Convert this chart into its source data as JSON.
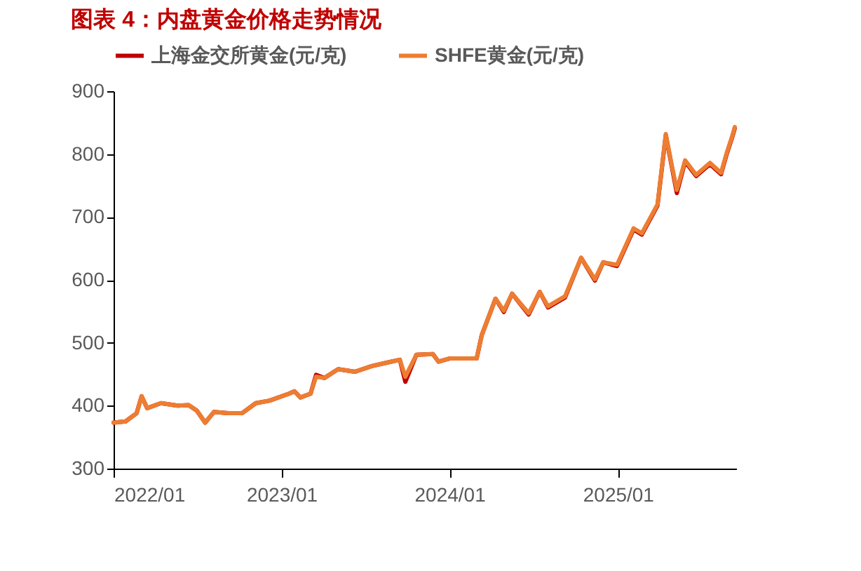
{
  "chart_data": {
    "type": "line",
    "title": "图表 4：内盘黄金价格走势情况",
    "x": [
      "2022-01-01",
      "2022-01-27",
      "2022-02-20",
      "2022-03-03",
      "2022-03-15",
      "2022-04-14",
      "2022-05-20",
      "2022-06-13",
      "2022-07-01",
      "2022-07-19",
      "2022-08-07",
      "2022-09-07",
      "2022-10-07",
      "2022-11-06",
      "2022-12-06",
      "2023-01-17",
      "2023-01-29",
      "2023-02-11",
      "2023-03-05",
      "2023-03-17",
      "2023-04-04",
      "2023-05-04",
      "2023-06-10",
      "2023-07-16",
      "2023-08-21",
      "2023-09-15",
      "2023-09-27",
      "2023-10-21",
      "2023-11-26",
      "2023-12-08",
      "2024-01-01",
      "2024-02-29",
      "2024-03-11",
      "2024-04-10",
      "2024-04-28",
      "2024-05-16",
      "2024-06-21",
      "2024-07-15",
      "2024-08-02",
      "2024-09-08",
      "2024-10-13",
      "2024-11-12",
      "2024-11-30",
      "2024-12-30",
      "2025-02-04",
      "2025-02-22",
      "2025-03-28",
      "2025-04-15",
      "2025-04-27",
      "2025-05-09",
      "2025-05-27",
      "2025-06-20",
      "2025-07-20",
      "2025-08-13",
      "2025-08-25",
      "2025-09-06",
      "2025-09-12"
    ],
    "series": [
      {
        "name": "上海金交所黄金(元/克)",
        "color": "#c00000",
        "values": [
          373,
          375,
          388,
          415,
          396,
          404,
          400,
          401,
          392,
          373,
          390,
          388,
          388,
          404,
          408,
          419,
          423,
          413,
          419,
          449,
          444,
          458,
          454,
          463,
          469,
          473,
          438,
          481,
          482,
          470,
          475,
          475,
          512,
          570,
          549,
          578,
          545,
          581,
          556,
          572,
          635,
          599,
          628,
          622,
          680,
          672,
          718,
          830,
          784,
          738,
          788,
          765,
          784,
          768,
          799,
          826,
          841
        ]
      },
      {
        "name": "SHFE黄金(元/克)",
        "color": "#ed7d31",
        "values": [
          373,
          375,
          388,
          415,
          396,
          404,
          400,
          401,
          392,
          373,
          390,
          388,
          388,
          404,
          408,
          419,
          423,
          413,
          419,
          446,
          444,
          458,
          454,
          463,
          469,
          473,
          446,
          481,
          482,
          470,
          475,
          475,
          512,
          570,
          551,
          578,
          547,
          581,
          558,
          574,
          635,
          601,
          628,
          624,
          682,
          674,
          720,
          832,
          786,
          743,
          790,
          767,
          786,
          770,
          801,
          828,
          843
        ]
      }
    ],
    "xlim": [
      "2022-01-01",
      "2025-09-15"
    ],
    "xticks": [
      {
        "value": "2022-01-01",
        "label": "2022/01"
      },
      {
        "value": "2023-01-01",
        "label": "2023/01"
      },
      {
        "value": "2024-01-01",
        "label": "2024/01"
      },
      {
        "value": "2025-01-01",
        "label": "2025/01"
      }
    ],
    "ylim": [
      300,
      900
    ],
    "yticks": [
      300,
      400,
      500,
      600,
      700,
      800,
      900
    ],
    "grid": false,
    "legend": "top"
  }
}
